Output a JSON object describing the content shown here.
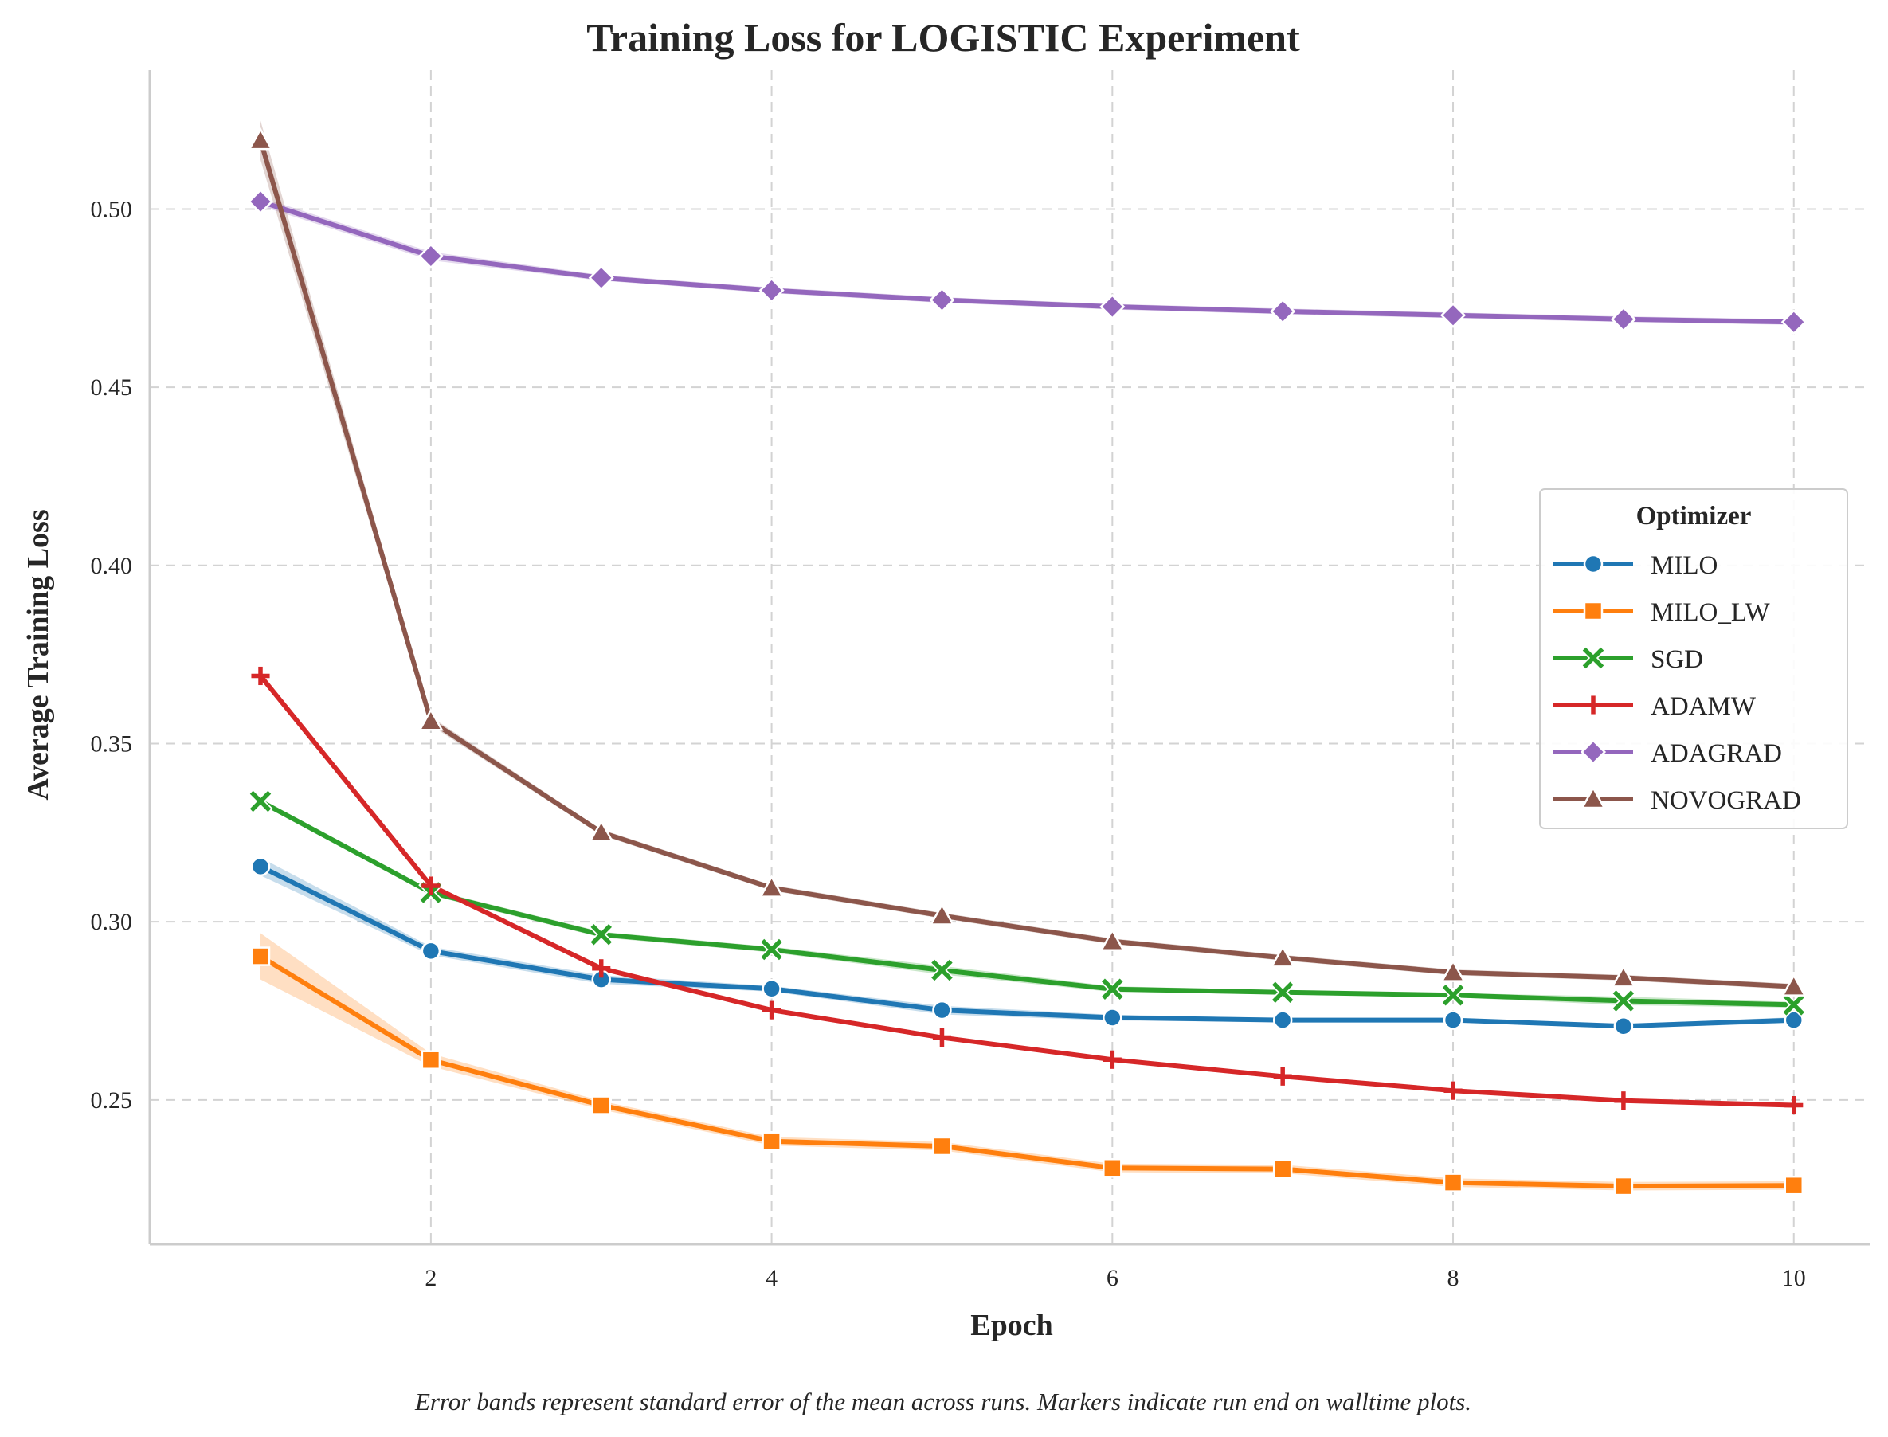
{
  "chart_data": {
    "type": "line",
    "title": "Training Loss for LOGISTIC Experiment",
    "xlabel": "Epoch",
    "ylabel": "Average Training Loss",
    "caption": "Error bands represent standard error of the mean across runs. Markers indicate run end on walltime plots.",
    "x": [
      1,
      2,
      3,
      4,
      5,
      6,
      7,
      8,
      9,
      10
    ],
    "xlim": [
      0.35,
      10.45
    ],
    "ylim": [
      0.2095,
      0.539
    ],
    "xticks": [
      2,
      4,
      6,
      8,
      10
    ],
    "xtick_labels": [
      "2",
      "4",
      "6",
      "8",
      "10"
    ],
    "yticks": [
      0.25,
      0.3,
      0.35,
      0.4,
      0.45,
      0.5
    ],
    "ytick_labels": [
      "0.25",
      "0.30",
      "0.35",
      "0.40",
      "0.45",
      "0.50"
    ],
    "grid": true,
    "legend": {
      "title": "Optimizer",
      "position": "center-right"
    },
    "series": [
      {
        "name": "MILO",
        "color": "#1f77b4",
        "marker": "circle",
        "values": [
          0.3155,
          0.2918,
          0.2838,
          0.2812,
          0.2752,
          0.2731,
          0.2724,
          0.2724,
          0.2707,
          0.2724
        ],
        "err": [
          0.0025,
          0.0012,
          0.0012,
          0.0008,
          0.0012,
          0.0008,
          0.0006,
          0.0006,
          0.0006,
          0.0008
        ]
      },
      {
        "name": "MILO_LW",
        "color": "#ff7f0e",
        "marker": "square",
        "values": [
          0.2903,
          0.2612,
          0.2485,
          0.2384,
          0.237,
          0.2309,
          0.2306,
          0.2268,
          0.2258,
          0.226
        ],
        "err": [
          0.0065,
          0.0018,
          0.0012,
          0.0012,
          0.0012,
          0.0012,
          0.0012,
          0.0012,
          0.0012,
          0.0012
        ]
      },
      {
        "name": "SGD",
        "color": "#2ca02c",
        "marker": "x",
        "values": [
          0.3338,
          0.3082,
          0.2964,
          0.2922,
          0.2864,
          0.2811,
          0.2802,
          0.2794,
          0.2778,
          0.2767
        ],
        "err": [
          0.0008,
          0.0008,
          0.0008,
          0.0008,
          0.0012,
          0.0008,
          0.0006,
          0.0006,
          0.0012,
          0.0008
        ]
      },
      {
        "name": "ADAMW",
        "color": "#d62728",
        "marker": "plus",
        "values": [
          0.369,
          0.3101,
          0.2869,
          0.2752,
          0.2675,
          0.2613,
          0.2566,
          0.2526,
          0.2498,
          0.2485
        ],
        "err": [
          0.0004,
          0.0004,
          0.0004,
          0.0004,
          0.0004,
          0.0004,
          0.0004,
          0.0004,
          0.0004,
          0.0004
        ]
      },
      {
        "name": "ADAGRAD",
        "color": "#9467bd",
        "marker": "diamond",
        "values": [
          0.5021,
          0.4868,
          0.4807,
          0.4772,
          0.4745,
          0.4726,
          0.4713,
          0.4702,
          0.4691,
          0.4683
        ],
        "err": [
          0.0012,
          0.0012,
          0.0008,
          0.0008,
          0.0008,
          0.0008,
          0.0008,
          0.0008,
          0.0008,
          0.0008
        ]
      },
      {
        "name": "NOVOGRAD",
        "color": "#8c564b",
        "marker": "triangle",
        "values": [
          0.5193,
          0.3563,
          0.3251,
          0.3095,
          0.3017,
          0.2945,
          0.2899,
          0.2858,
          0.2843,
          0.2818
        ],
        "err": [
          0.0055,
          0.0012,
          0.0008,
          0.0008,
          0.0008,
          0.0008,
          0.0008,
          0.0008,
          0.0008,
          0.0008
        ]
      }
    ]
  }
}
